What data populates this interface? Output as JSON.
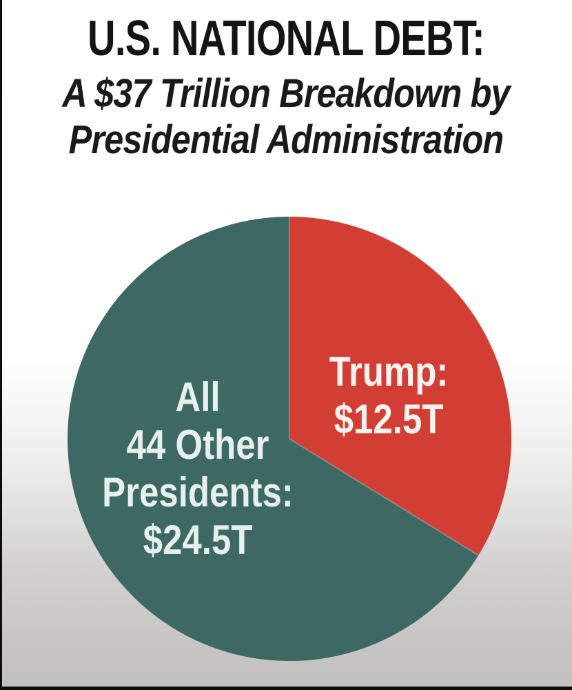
{
  "page": {
    "title_line1": "U.S. NATIONAL DEBT:",
    "subtitle_line1": "A $37 Trillion Breakdown by",
    "subtitle_line2": "Presidential Administration"
  },
  "chart_data": {
    "type": "pie",
    "title": "U.S. NATIONAL DEBT: A $37 Trillion Breakdown by Presidential Administration",
    "total_value_trillions": 37,
    "units": "trillion USD",
    "start_angle_deg": 0,
    "direction": "clockwise",
    "legend_position": "labels-inside-slices",
    "divider_color": "#8b948f",
    "slices": [
      {
        "name": "Trump",
        "value_trillions": 12.5,
        "percent": 33.8,
        "label_lines": [
          "Trump:",
          "$12.5T"
        ],
        "color": "#d33e34",
        "text_color": "#f8f3f1"
      },
      {
        "name": "All 44 Other Presidents",
        "value_trillions": 24.5,
        "percent": 66.2,
        "label_lines": [
          "All",
          "44 Other",
          "Presidents:",
          "$24.5T"
        ],
        "color": "#3e6863",
        "text_color": "#e6f1ee"
      }
    ]
  },
  "colors": {
    "background_top": "#ffffff",
    "background_bottom": "#c2c1c0",
    "frame": "#0d0d0d",
    "title_text": "#141414"
  }
}
